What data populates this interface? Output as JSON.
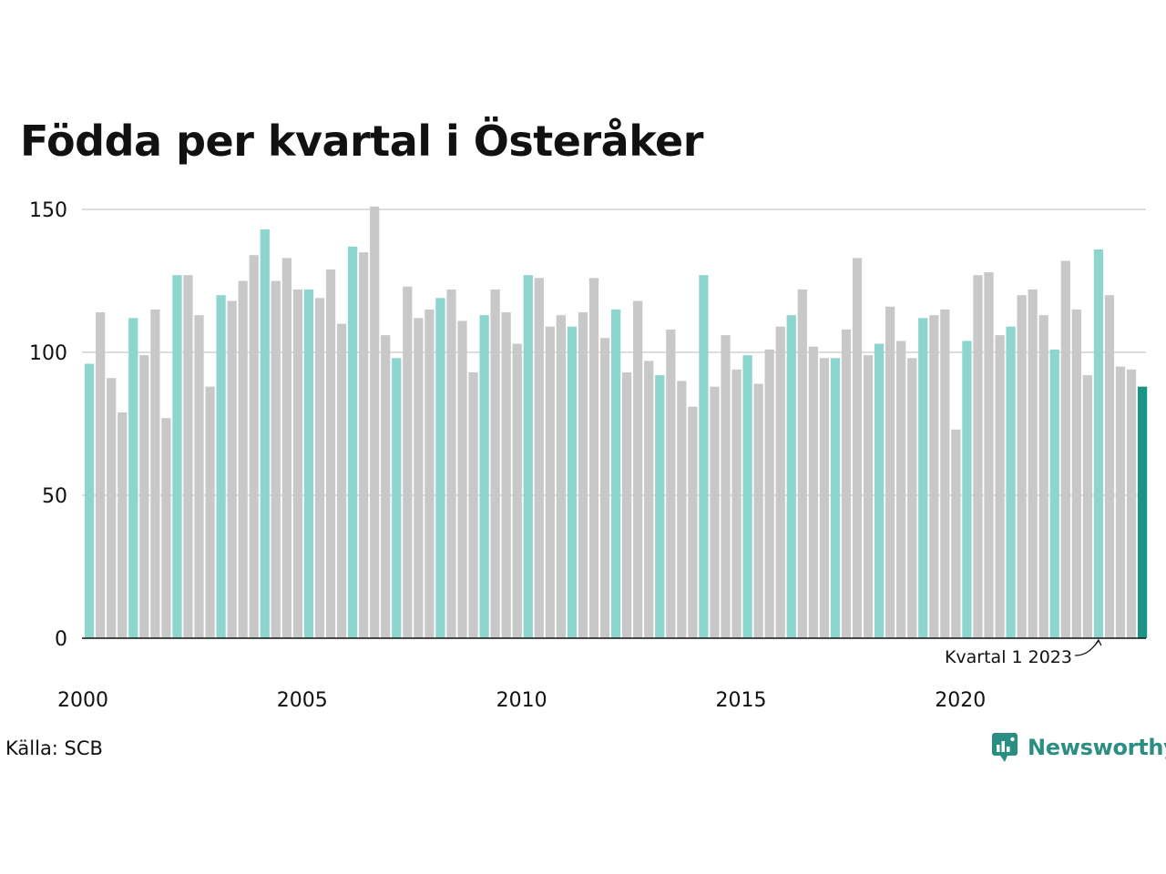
{
  "chart_data": {
    "type": "bar",
    "title": "Födda per kvartal i Österåker",
    "xlabel": "",
    "ylabel": "",
    "ylim": [
      0,
      150
    ],
    "yticks": [
      0,
      50,
      100,
      150
    ],
    "xticks": [
      "2000",
      "2005",
      "2010",
      "2015",
      "2020"
    ],
    "start_year": 2000,
    "grid": true,
    "values": [
      96,
      114,
      91,
      79,
      112,
      99,
      115,
      77,
      127,
      127,
      113,
      88,
      120,
      118,
      125,
      134,
      143,
      125,
      133,
      122,
      122,
      119,
      129,
      110,
      137,
      135,
      151,
      106,
      98,
      123,
      112,
      115,
      119,
      122,
      111,
      93,
      113,
      122,
      114,
      103,
      127,
      126,
      109,
      113,
      109,
      114,
      126,
      105,
      115,
      93,
      118,
      97,
      92,
      108,
      90,
      81,
      127,
      88,
      106,
      94,
      99,
      89,
      101,
      109,
      113,
      122,
      102,
      98,
      98,
      108,
      133,
      99,
      103,
      116,
      104,
      98,
      112,
      113,
      115,
      73,
      104,
      127,
      128,
      106,
      109,
      120,
      122,
      113,
      101,
      132,
      115,
      92,
      136,
      120,
      95,
      94,
      88
    ],
    "colors": {
      "q1": "#8dd5cf",
      "other": "#c8c8c8",
      "highlight": "#1a9585",
      "grid": "#dddddd",
      "axis": "#111111"
    },
    "annotation": {
      "text": "Kvartal 1 2023",
      "index": 92
    }
  },
  "source": "Källa: SCB",
  "logo": {
    "text": "Newsworthy",
    "icon": "newsworthy-logo-icon",
    "color": "#2a8f82"
  }
}
